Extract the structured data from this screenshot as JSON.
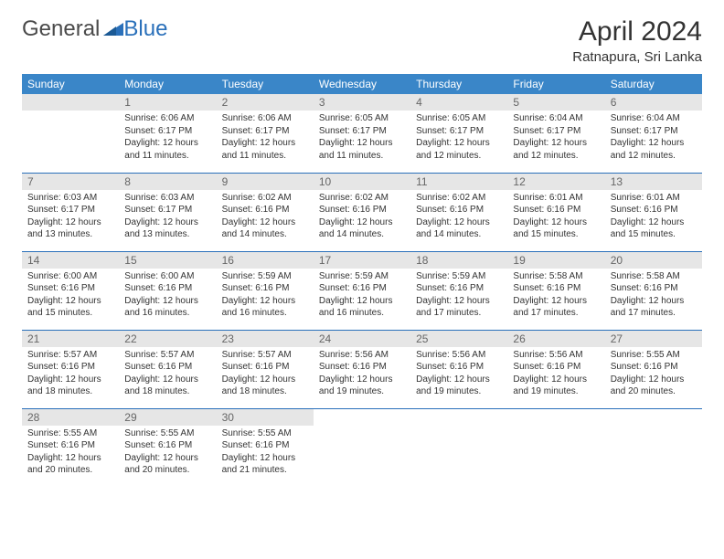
{
  "brand": {
    "part1": "General",
    "part2": "Blue"
  },
  "title": "April 2024",
  "location": "Ratnapura, Sri Lanka",
  "header_bg": "#3a86c8",
  "header_fg": "#ffffff",
  "rule_color": "#2a70ba",
  "daynum_bg": "#e6e6e6",
  "dow": [
    "Sunday",
    "Monday",
    "Tuesday",
    "Wednesday",
    "Thursday",
    "Friday",
    "Saturday"
  ],
  "weeks": [
    [
      null,
      {
        "n": "1",
        "sr": "6:06 AM",
        "ss": "6:17 PM",
        "dl": "12 hours and 11 minutes."
      },
      {
        "n": "2",
        "sr": "6:06 AM",
        "ss": "6:17 PM",
        "dl": "12 hours and 11 minutes."
      },
      {
        "n": "3",
        "sr": "6:05 AM",
        "ss": "6:17 PM",
        "dl": "12 hours and 11 minutes."
      },
      {
        "n": "4",
        "sr": "6:05 AM",
        "ss": "6:17 PM",
        "dl": "12 hours and 12 minutes."
      },
      {
        "n": "5",
        "sr": "6:04 AM",
        "ss": "6:17 PM",
        "dl": "12 hours and 12 minutes."
      },
      {
        "n": "6",
        "sr": "6:04 AM",
        "ss": "6:17 PM",
        "dl": "12 hours and 12 minutes."
      }
    ],
    [
      {
        "n": "7",
        "sr": "6:03 AM",
        "ss": "6:17 PM",
        "dl": "12 hours and 13 minutes."
      },
      {
        "n": "8",
        "sr": "6:03 AM",
        "ss": "6:17 PM",
        "dl": "12 hours and 13 minutes."
      },
      {
        "n": "9",
        "sr": "6:02 AM",
        "ss": "6:16 PM",
        "dl": "12 hours and 14 minutes."
      },
      {
        "n": "10",
        "sr": "6:02 AM",
        "ss": "6:16 PM",
        "dl": "12 hours and 14 minutes."
      },
      {
        "n": "11",
        "sr": "6:02 AM",
        "ss": "6:16 PM",
        "dl": "12 hours and 14 minutes."
      },
      {
        "n": "12",
        "sr": "6:01 AM",
        "ss": "6:16 PM",
        "dl": "12 hours and 15 minutes."
      },
      {
        "n": "13",
        "sr": "6:01 AM",
        "ss": "6:16 PM",
        "dl": "12 hours and 15 minutes."
      }
    ],
    [
      {
        "n": "14",
        "sr": "6:00 AM",
        "ss": "6:16 PM",
        "dl": "12 hours and 15 minutes."
      },
      {
        "n": "15",
        "sr": "6:00 AM",
        "ss": "6:16 PM",
        "dl": "12 hours and 16 minutes."
      },
      {
        "n": "16",
        "sr": "5:59 AM",
        "ss": "6:16 PM",
        "dl": "12 hours and 16 minutes."
      },
      {
        "n": "17",
        "sr": "5:59 AM",
        "ss": "6:16 PM",
        "dl": "12 hours and 16 minutes."
      },
      {
        "n": "18",
        "sr": "5:59 AM",
        "ss": "6:16 PM",
        "dl": "12 hours and 17 minutes."
      },
      {
        "n": "19",
        "sr": "5:58 AM",
        "ss": "6:16 PM",
        "dl": "12 hours and 17 minutes."
      },
      {
        "n": "20",
        "sr": "5:58 AM",
        "ss": "6:16 PM",
        "dl": "12 hours and 17 minutes."
      }
    ],
    [
      {
        "n": "21",
        "sr": "5:57 AM",
        "ss": "6:16 PM",
        "dl": "12 hours and 18 minutes."
      },
      {
        "n": "22",
        "sr": "5:57 AM",
        "ss": "6:16 PM",
        "dl": "12 hours and 18 minutes."
      },
      {
        "n": "23",
        "sr": "5:57 AM",
        "ss": "6:16 PM",
        "dl": "12 hours and 18 minutes."
      },
      {
        "n": "24",
        "sr": "5:56 AM",
        "ss": "6:16 PM",
        "dl": "12 hours and 19 minutes."
      },
      {
        "n": "25",
        "sr": "5:56 AM",
        "ss": "6:16 PM",
        "dl": "12 hours and 19 minutes."
      },
      {
        "n": "26",
        "sr": "5:56 AM",
        "ss": "6:16 PM",
        "dl": "12 hours and 19 minutes."
      },
      {
        "n": "27",
        "sr": "5:55 AM",
        "ss": "6:16 PM",
        "dl": "12 hours and 20 minutes."
      }
    ],
    [
      {
        "n": "28",
        "sr": "5:55 AM",
        "ss": "6:16 PM",
        "dl": "12 hours and 20 minutes."
      },
      {
        "n": "29",
        "sr": "5:55 AM",
        "ss": "6:16 PM",
        "dl": "12 hours and 20 minutes."
      },
      {
        "n": "30",
        "sr": "5:55 AM",
        "ss": "6:16 PM",
        "dl": "12 hours and 21 minutes."
      },
      null,
      null,
      null,
      null
    ]
  ],
  "labels": {
    "sunrise": "Sunrise:",
    "sunset": "Sunset:",
    "daylight": "Daylight:"
  }
}
